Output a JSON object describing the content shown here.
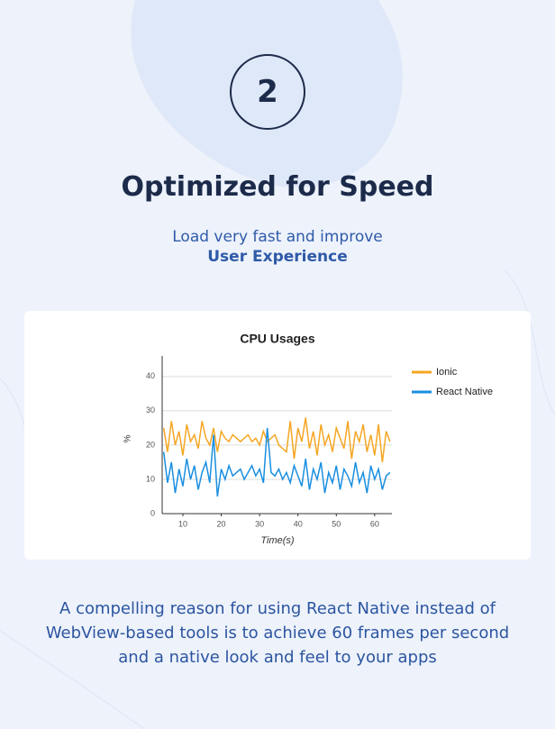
{
  "step": "2",
  "title": "Optimized for Speed",
  "subtitle": {
    "line1": "Load very fast and improve",
    "line2": "User Experience"
  },
  "description": [
    "A compelling reason for using React Native instead of",
    "WebView-based tools is to achieve 60 frames per second",
    "and a native look and feel to your apps"
  ],
  "chart_data": {
    "type": "line",
    "title": "CPU Usages",
    "x_label": "Time(s)",
    "y_label": "%",
    "x": [
      5,
      6,
      7,
      8,
      9,
      10,
      11,
      12,
      13,
      14,
      15,
      16,
      17,
      18,
      19,
      20,
      21,
      22,
      23,
      24,
      25,
      26,
      27,
      28,
      29,
      30,
      31,
      32,
      33,
      34,
      35,
      36,
      37,
      38,
      39,
      40,
      41,
      42,
      43,
      44,
      45,
      46,
      47,
      48,
      49,
      50,
      51,
      52,
      53,
      54,
      55,
      56,
      57,
      58,
      59,
      60,
      61,
      62,
      63,
      64
    ],
    "series": [
      {
        "name": "Ionic",
        "color": "#f5a623",
        "values": [
          25,
          18,
          27,
          20,
          24,
          17,
          26,
          21,
          23,
          19,
          27,
          22,
          20,
          25,
          18,
          24,
          22,
          21,
          23,
          22,
          21,
          22,
          23,
          21,
          22,
          20,
          24,
          21,
          22,
          23,
          20,
          19,
          18,
          27,
          16,
          25,
          21,
          28,
          19,
          24,
          17,
          26,
          20,
          23,
          18,
          25,
          22,
          19,
          27,
          16,
          24,
          21,
          26,
          18,
          23,
          17,
          26,
          15,
          24,
          21
        ]
      },
      {
        "name": "React Native",
        "color": "#1a8fe0",
        "values": [
          18,
          9,
          15,
          6,
          13,
          8,
          16,
          10,
          14,
          7,
          12,
          15,
          9,
          23,
          5,
          13,
          10,
          14,
          11,
          12,
          13,
          10,
          12,
          14,
          11,
          13,
          9,
          25,
          12,
          11,
          13,
          10,
          12,
          9,
          14,
          11,
          8,
          16,
          7,
          13,
          10,
          15,
          6,
          12,
          9,
          14,
          7,
          13,
          11,
          8,
          15,
          9,
          12,
          6,
          14,
          10,
          13,
          7,
          11,
          12
        ]
      }
    ],
    "xlim": [
      4.6,
      64.5
    ],
    "ylim": [
      0,
      46
    ],
    "xticks": [
      10,
      20,
      30,
      40,
      50,
      60
    ],
    "yticks": [
      0,
      10,
      20,
      30,
      40
    ],
    "grid": true,
    "legend": "right"
  }
}
